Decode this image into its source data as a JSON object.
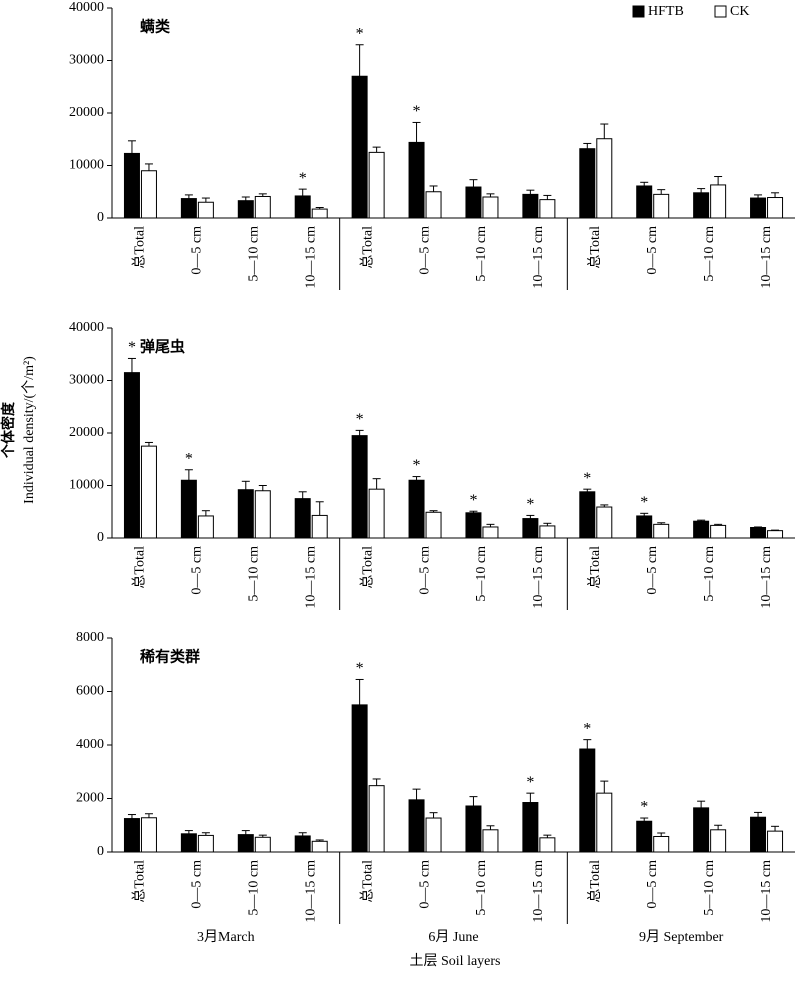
{
  "y_label": [
    "个体密度",
    "Individual density/(个/m²)"
  ],
  "x_label": "土层 Soil layers",
  "groups": [
    "3月March",
    "6月 June",
    "9月 September"
  ],
  "chart_data": [
    {
      "type": "bar",
      "title": "螨类",
      "categories": [
        "总Total",
        "0—5 cm",
        "5—10 cm",
        "10—15 cm",
        "总Total",
        "0—5 cm",
        "5—10 cm",
        "10—15 cm",
        "总Total",
        "0—5 cm",
        "5—10 cm",
        "10—15 cm"
      ],
      "series": [
        {
          "name": "HFTB",
          "color": "#000000",
          "values": [
            12300,
            3700,
            3300,
            4200,
            27000,
            14400,
            5900,
            4500,
            13200,
            6100,
            4800,
            3800
          ],
          "errors": [
            2400,
            700,
            700,
            1300,
            6000,
            3800,
            1400,
            800,
            1000,
            700,
            800,
            600
          ]
        },
        {
          "name": "CK",
          "color": "#ffffff",
          "values": [
            9000,
            3000,
            4100,
            1700,
            12500,
            5000,
            4000,
            3500,
            15100,
            4500,
            6300,
            3900
          ],
          "errors": [
            1300,
            800,
            500,
            300,
            1000,
            1100,
            600,
            800,
            2800,
            900,
            1600,
            900
          ]
        }
      ],
      "annotations": [
        {
          "text": "*",
          "series": 0,
          "index": 3
        },
        {
          "text": "*",
          "series": 0,
          "index": 4
        },
        {
          "text": "*",
          "series": 0,
          "index": 5
        }
      ],
      "ylim": [
        0,
        40000
      ],
      "yticks": [
        0,
        10000,
        20000,
        30000,
        40000
      ]
    },
    {
      "type": "bar",
      "title": "弹尾虫",
      "categories": [
        "总Total",
        "0—5 cm",
        "5—10 cm",
        "10—15 cm",
        "总Total",
        "0—5 cm",
        "5—10 cm",
        "10—15 cm",
        "总Total",
        "0—5 cm",
        "5—10 cm",
        "10—15 cm"
      ],
      "series": [
        {
          "color": "#000000",
          "values": [
            31500,
            11000,
            9200,
            7500,
            19500,
            11000,
            4800,
            3700,
            8800,
            4200,
            3200,
            2000
          ],
          "errors": [
            2700,
            2000,
            1600,
            1300,
            1000,
            700,
            300,
            600,
            500,
            500,
            200,
            100
          ]
        },
        {
          "color": "#ffffff",
          "values": [
            17500,
            4200,
            9000,
            4300,
            9300,
            4900,
            2100,
            2300,
            5900,
            2600,
            2400,
            1400
          ],
          "errors": [
            700,
            1000,
            1000,
            2600,
            2000,
            300,
            500,
            500,
            400,
            300,
            200,
            100
          ]
        }
      ],
      "annotations": [
        {
          "text": "*",
          "series": 0,
          "index": 0
        },
        {
          "text": "*",
          "series": 0,
          "index": 1
        },
        {
          "text": "*",
          "series": 0,
          "index": 4
        },
        {
          "text": "*",
          "series": 0,
          "index": 5
        },
        {
          "text": "*",
          "series": 0,
          "index": 6
        },
        {
          "text": "*",
          "series": 0,
          "index": 7
        },
        {
          "text": "*",
          "series": 0,
          "index": 8
        },
        {
          "text": "*",
          "series": 0,
          "index": 9
        }
      ],
      "ylim": [
        0,
        40000
      ],
      "yticks": [
        0,
        10000,
        20000,
        30000,
        40000
      ]
    },
    {
      "type": "bar",
      "title": "稀有类群",
      "categories": [
        "总Total",
        "0—5 cm",
        "5—10 cm",
        "10—15 cm",
        "总Total",
        "0—5 cm",
        "5—10 cm",
        "10—15 cm",
        "总Total",
        "0—5 cm",
        "5—10 cm",
        "10—15 cm"
      ],
      "series": [
        {
          "color": "#000000",
          "values": [
            1250,
            680,
            650,
            600,
            5500,
            1950,
            1720,
            1850,
            3850,
            1150,
            1650,
            1300
          ],
          "errors": [
            150,
            120,
            150,
            120,
            950,
            400,
            350,
            350,
            350,
            120,
            250,
            180
          ]
        },
        {
          "color": "#ffffff",
          "values": [
            1280,
            620,
            550,
            400,
            2480,
            1270,
            830,
            530,
            2200,
            580,
            830,
            780
          ],
          "errors": [
            150,
            100,
            80,
            50,
            250,
            200,
            150,
            100,
            450,
            130,
            170,
            180
          ]
        }
      ],
      "annotations": [
        {
          "text": "*",
          "series": 0,
          "index": 4
        },
        {
          "text": "*",
          "series": 0,
          "index": 7
        },
        {
          "text": "*",
          "series": 0,
          "index": 8
        },
        {
          "text": "*",
          "series": 0,
          "index": 9
        }
      ],
      "ylim": [
        0,
        8000
      ],
      "yticks": [
        0,
        2000,
        4000,
        6000,
        8000
      ]
    }
  ]
}
